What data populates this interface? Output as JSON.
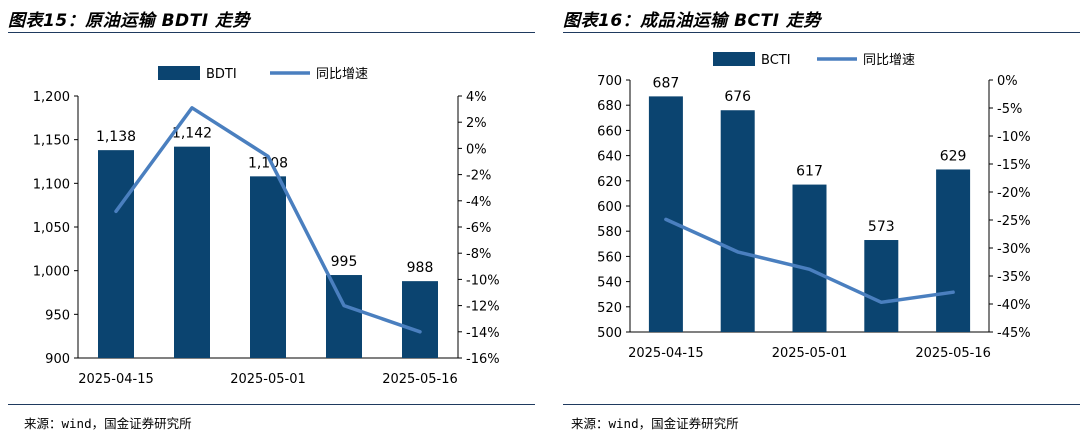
{
  "charts": [
    {
      "figure_title": "图表15：原油运输 BDTI 走势",
      "source": "来源：wind，国金证券研究所"
    },
    {
      "figure_title": "图表16：成品油运输 BCTI 走势",
      "source": "来源：wind，国金证券研究所"
    }
  ],
  "chart_data": [
    {
      "type": "bar",
      "categories": [
        "2025-04-15",
        "",
        "2025-05-01",
        "",
        "2025-05-16"
      ],
      "x_tick_labels": [
        "2025-04-15",
        "2025-05-01",
        "2025-05-16"
      ],
      "series": [
        {
          "name": "BDTI",
          "kind": "bar",
          "axis": "left",
          "values": [
            1138,
            1142,
            1108,
            995,
            988
          ],
          "labels": [
            "1,138",
            "1,142",
            "1,108",
            "995",
            "988"
          ]
        },
        {
          "name": "同比增速",
          "kind": "line",
          "axis": "right",
          "values": [
            -4.8,
            3.1,
            -0.6,
            -12.0,
            -14.0
          ]
        }
      ],
      "ylim": [
        900,
        1200
      ],
      "y_ticks": [
        "900",
        "950",
        "1,000",
        "1,050",
        "1,100",
        "1,150",
        "1,200"
      ],
      "y2lim": [
        -16,
        4
      ],
      "y2_ticks": [
        "-16%",
        "-14%",
        "-12%",
        "-10%",
        "-8%",
        "-6%",
        "-4%",
        "-2%",
        "0%",
        "2%",
        "4%"
      ],
      "legend": "top-center",
      "grid": false,
      "colors": {
        "bar": "#0b4470",
        "line": "#4a7fbf"
      }
    },
    {
      "type": "bar",
      "categories": [
        "2025-04-15",
        "",
        "2025-05-01",
        "",
        "2025-05-16"
      ],
      "x_tick_labels": [
        "2025-04-15",
        "2025-05-01",
        "2025-05-16"
      ],
      "series": [
        {
          "name": "BCTI",
          "kind": "bar",
          "axis": "left",
          "values": [
            687,
            676,
            617,
            573,
            629
          ],
          "labels": [
            "687",
            "676",
            "617",
            "573",
            "629"
          ]
        },
        {
          "name": "同比增速",
          "kind": "line",
          "axis": "right",
          "values": [
            -24.9,
            -30.7,
            -33.8,
            -39.7,
            -37.9
          ]
        }
      ],
      "ylim": [
        500,
        700
      ],
      "y_ticks": [
        "500",
        "520",
        "540",
        "560",
        "580",
        "600",
        "620",
        "640",
        "660",
        "680",
        "700"
      ],
      "y2lim": [
        -45,
        0
      ],
      "y2_ticks": [
        "-45%",
        "-40%",
        "-35%",
        "-30%",
        "-25%",
        "-20%",
        "-15%",
        "-10%",
        "-5%",
        "0%"
      ],
      "legend": "top-center",
      "grid": false,
      "colors": {
        "bar": "#0b4470",
        "line": "#4a7fbf"
      }
    }
  ]
}
